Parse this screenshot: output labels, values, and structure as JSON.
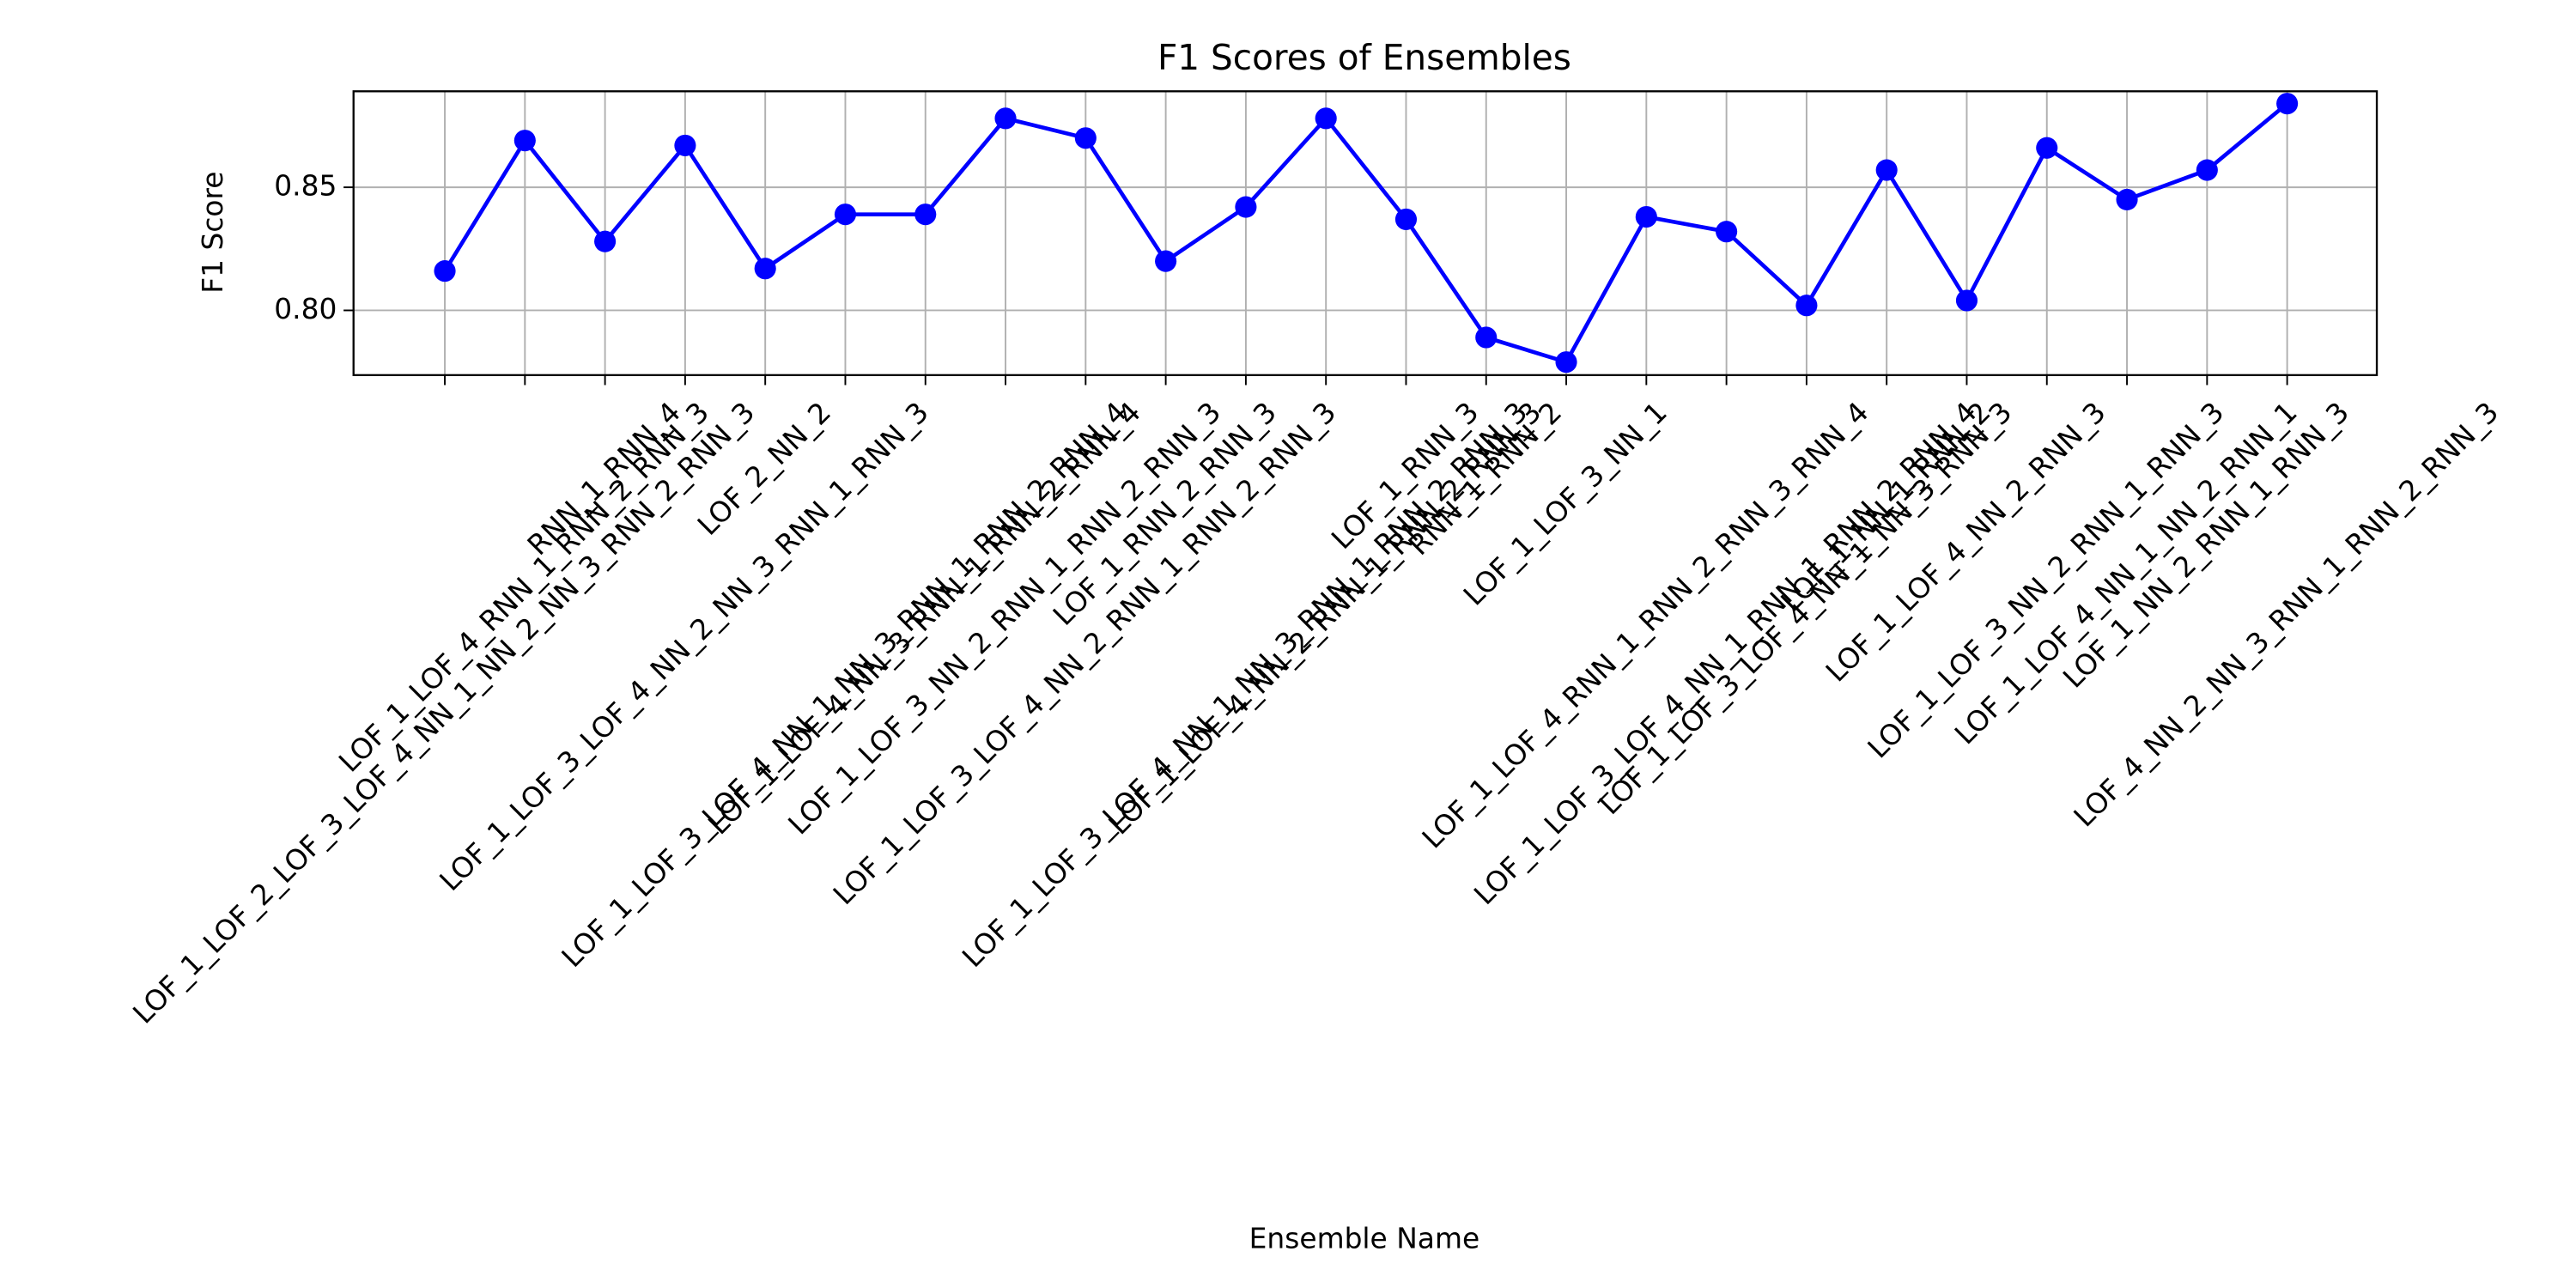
{
  "chart_data": {
    "type": "line",
    "title": "F1 Scores of Ensembles",
    "xlabel": "Ensemble Name",
    "ylabel": "F1 Score",
    "categories": [
      "LOF_1_LOF_2_LOF_3_LOF_4_NN_1_NN_2_NN_3_RNN_2_RNN_3",
      "LOF_1_LOF_4_RNN_1_RNN_2_RNN_3",
      "RNN_1_RNN_4",
      "LOF_1_LOF_3_LOF_4_NN_2_NN_3_RNN_1_RNN_3",
      "LOF_2_NN_2",
      "LOF_1_LOF_3_LOF_4_NN_1_NN_3_RNN_1_RNN_2_RNN_4",
      "LOF_1_LOF_4_NN_3_RNN_1_RNN_2_RNN_4",
      "LOF_1_LOF_3_NN_2_RNN_1_RNN_2_RNN_3",
      "LOF_1_LOF_3_LOF_4_NN_2_RNN_1_RNN_2_RNN_3",
      "LOF_1_RNN_2_RNN_3",
      "LOF_1_LOF_3_LOF_4_NN_1_NN_3_RNN_1_RNN_2_RNN_3",
      "LOF_1_LOF_4_NN_2_RNN_1_RNN_2_RNN_3",
      "LOF_1_RNN_3",
      "RNN_1_RNN_2",
      "LOF_1_LOF_3_NN_1",
      "LOF_1_LOF_4_RNN_1_RNN_2_RNN_3_RNN_4",
      "LOF_1_LOF_3_LOF_4_NN_1_RNN_1_RNN_2_RNN_4",
      "LOF_1_LOF_3_LOF_4_NN_1_NN_3_RNN_3",
      "LOF_1_NN_1_RNN_2",
      "LOF_1_LOF_4_NN_2_RNN_3",
      "LOF_1_LOF_3_NN_2_RNN_1_RNN_3",
      "LOF_1_LOF_4_NN_1_NN_2_RNN_1",
      "LOF_1_NN_2_RNN_1_RNN_3",
      "LOF_4_NN_2_NN_3_RNN_1_RNN_2_RNN_3"
    ],
    "series": [
      {
        "name": "F1 Score",
        "color": "#0000ff",
        "values": [
          0.816,
          0.869,
          0.828,
          0.867,
          0.817,
          0.839,
          0.839,
          0.878,
          0.87,
          0.82,
          0.842,
          0.878,
          0.837,
          0.789,
          0.779,
          0.838,
          0.832,
          0.802,
          0.857,
          0.804,
          0.866,
          0.845,
          0.857,
          0.884
        ]
      }
    ],
    "ylim": [
      0.7737,
      0.889
    ],
    "yticks": [
      {
        "value": 0.8,
        "label": "0.80"
      },
      {
        "value": 0.85,
        "label": "0.85"
      }
    ],
    "grid": true
  }
}
